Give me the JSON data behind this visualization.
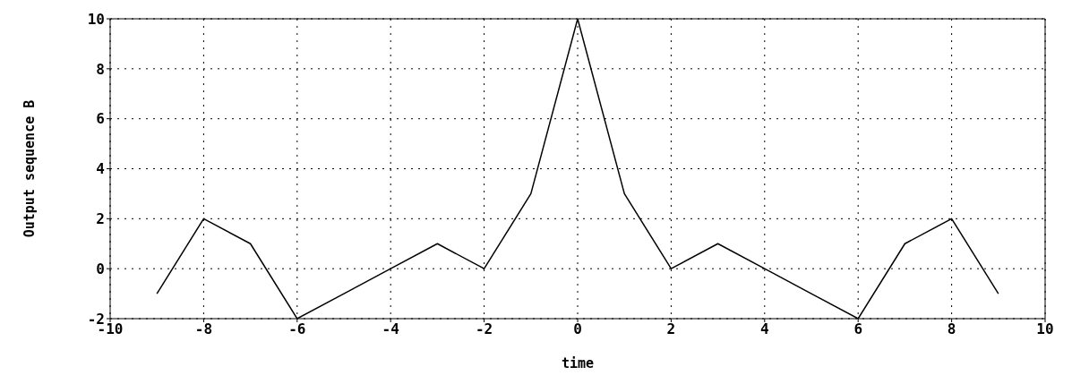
{
  "chart_data": {
    "type": "line",
    "xlabel": "time",
    "ylabel": "Output sequence B",
    "x": [
      -9,
      -8,
      -7,
      -6,
      -5,
      -4,
      -3,
      -2,
      -1,
      0,
      1,
      2,
      3,
      4,
      5,
      6,
      7,
      8,
      9
    ],
    "series": [
      {
        "color": "#000000",
        "values": [
          -1,
          2,
          1,
          -2,
          -1,
          0,
          1,
          0,
          3,
          10,
          3,
          0,
          1,
          0,
          -1,
          -2,
          1,
          2,
          -1
        ]
      }
    ],
    "xlim": [
      -10,
      10
    ],
    "xticks": [
      -10,
      -8,
      -6,
      -4,
      -2,
      0,
      2,
      4,
      6,
      8,
      10
    ],
    "ylim": [
      -2,
      10
    ],
    "yticks": [
      -2,
      0,
      2,
      4,
      6,
      8,
      10
    ],
    "grid": true,
    "legend": false,
    "marker": "none",
    "line_style": "solid"
  }
}
